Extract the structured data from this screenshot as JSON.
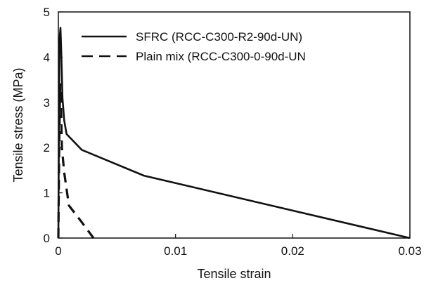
{
  "chart_data": {
    "type": "line",
    "xlabel": "Tensile strain",
    "ylabel": "Tensile stress (MPa)",
    "xlim": [
      0,
      0.03
    ],
    "ylim": [
      0,
      5
    ],
    "x_ticks": [
      0,
      0.01,
      0.02,
      0.03
    ],
    "x_tick_labels": [
      "0",
      "0.01",
      "0.02",
      "0.03"
    ],
    "y_ticks": [
      0,
      1,
      2,
      3,
      4,
      5
    ],
    "y_tick_labels": [
      "0",
      "1",
      "2",
      "3",
      "4",
      "5"
    ],
    "grid": false,
    "legend_position": "top-center",
    "series": [
      {
        "name": "SFRC (RCC-C300-R2-90d-UN)",
        "style": "solid",
        "color": "#111111",
        "x": [
          0,
          5e-05,
          0.0001,
          0.00018,
          0.00025,
          0.00035,
          0.0005,
          0.0007,
          0.002,
          0.0073,
          0.03
        ],
        "y": [
          0,
          2.5,
          4.4,
          4.65,
          4.1,
          3.1,
          2.6,
          2.3,
          1.95,
          1.38,
          0
        ]
      },
      {
        "name": "Plain mix (RCC-C300-0-90d-UN",
        "style": "dashed",
        "color": "#111111",
        "x": [
          0,
          8e-05,
          0.00015,
          0.00022,
          0.0003,
          0.0005,
          0.0009,
          0.002,
          0.003
        ],
        "y": [
          0,
          2.2,
          3.4,
          3.0,
          2.0,
          1.45,
          0.72,
          0.35,
          0
        ]
      }
    ]
  }
}
